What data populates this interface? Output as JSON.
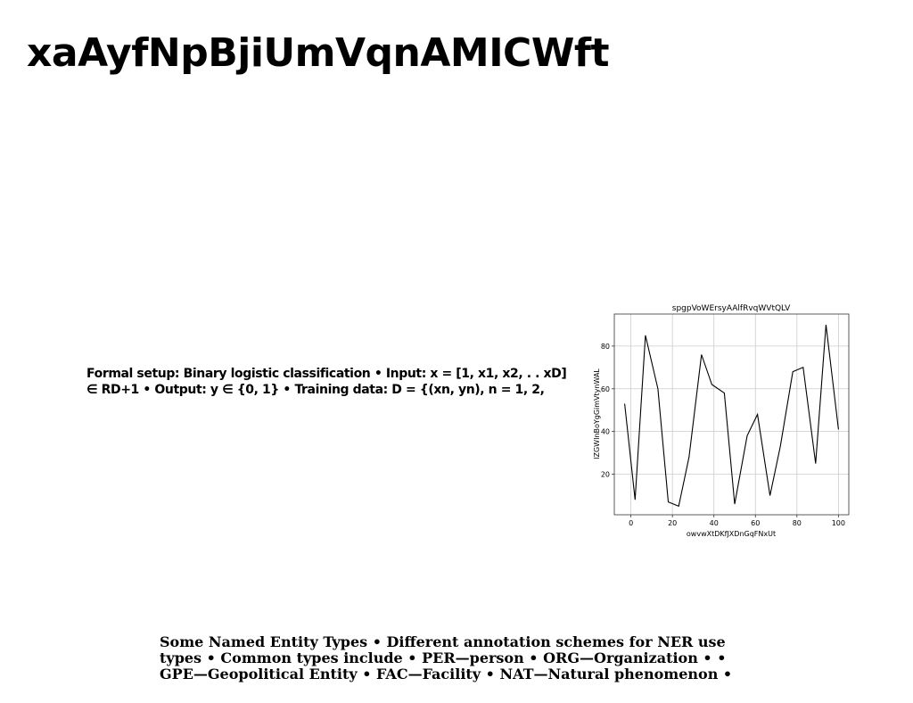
{
  "slide": {
    "title": "xaAyfNpBjiUmVqnAMICWft",
    "paragraph1": "Formal setup: Binary logistic classification • Input: x = [1, x1, x2, . . xD] ∈ RD+1 • Output: y ∈ {0, 1} • Training data: D = {(xn, yn), n = 1, 2,",
    "paragraph2": "Some Named Entity Types • Different annotation schemes for NER use types • Common types include • PER—person • ORG—Organization • • GPE—Geopolitical Entity • FAC—Facility • NAT—Natural phenomenon •"
  },
  "chart_data": {
    "type": "line",
    "title": "spgpVoWErsyAAlfRvqWVtQLV",
    "xlabel": "owvwXtDKfJXDnGqFNxUt",
    "ylabel": "IZGWInBoYgGimVtynWAL",
    "xlim": [
      -8,
      105
    ],
    "ylim": [
      1,
      95
    ],
    "xticks": [
      0,
      20,
      40,
      60,
      80,
      100
    ],
    "yticks": [
      20,
      40,
      60,
      80
    ],
    "grid": true,
    "series": [
      {
        "x": [
          -3,
          2,
          7,
          13,
          18,
          23,
          28,
          34,
          39,
          45,
          50,
          56,
          61,
          67,
          72,
          78,
          83,
          89,
          94,
          100
        ],
        "values": [
          53,
          8,
          85,
          60,
          7,
          5,
          28,
          76,
          62,
          58,
          6,
          38,
          48,
          10,
          33,
          68,
          70,
          25,
          90,
          41
        ],
        "color": "#000000"
      }
    ]
  }
}
